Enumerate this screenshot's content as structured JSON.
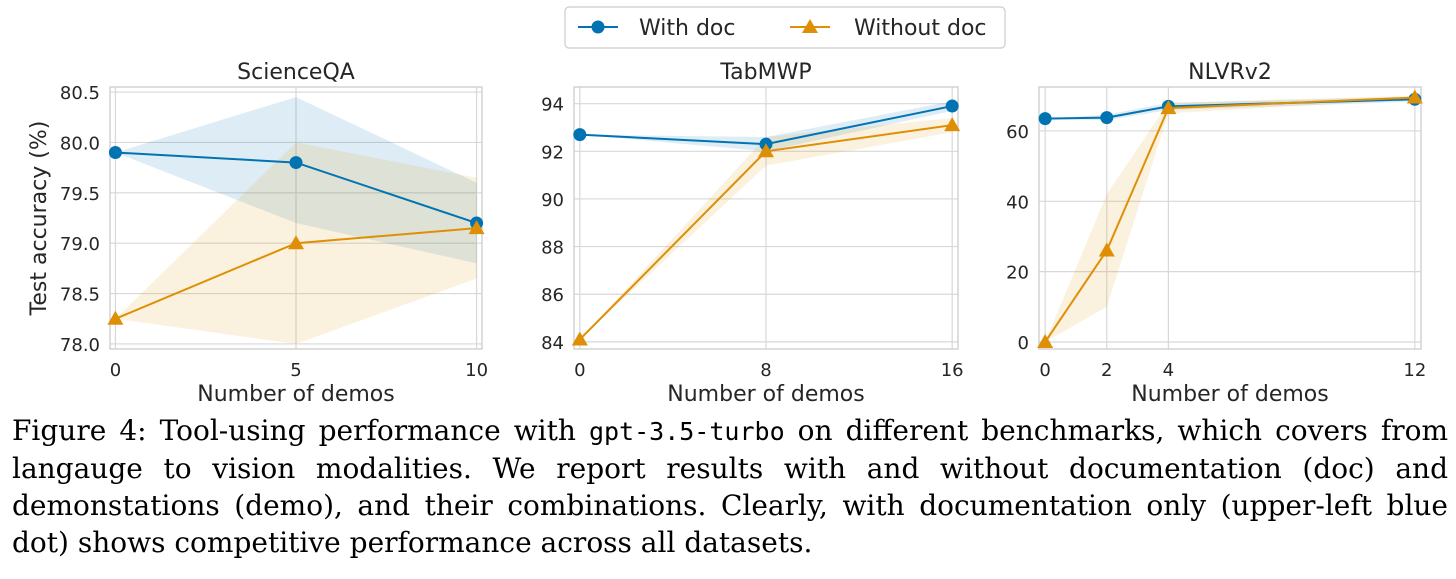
{
  "legend": {
    "placement": "top-center",
    "entries": [
      {
        "label": "With doc",
        "color": "#0173b2",
        "marker": "circle"
      },
      {
        "label": "Without doc",
        "color": "#de8f05",
        "marker": "triangle"
      }
    ]
  },
  "chart_data": [
    {
      "type": "line",
      "title": "ScienceQA",
      "xlabel": "Number of demos",
      "ylabel": "Test accuracy (%)",
      "x": [
        0,
        5,
        10
      ],
      "xticks": [
        0,
        5,
        10
      ],
      "xlim": [
        -0.15,
        10.15
      ],
      "ylim": [
        77.95,
        80.55
      ],
      "yticks": [
        78.0,
        78.5,
        79.0,
        79.5,
        80.0,
        80.5
      ],
      "ytick_labels": [
        "78.0",
        "78.5",
        "79.0",
        "79.5",
        "80.0",
        "80.5"
      ],
      "grid": true,
      "series": [
        {
          "name": "With doc",
          "values": [
            79.9,
            79.8,
            79.2
          ],
          "band_low": [
            79.9,
            79.2,
            78.8
          ],
          "band_high": [
            79.9,
            80.45,
            79.6
          ]
        },
        {
          "name": "Without doc",
          "values": [
            78.25,
            79.0,
            79.15
          ],
          "band_low": [
            78.25,
            78.0,
            78.65
          ],
          "band_high": [
            78.25,
            80.0,
            79.65
          ]
        }
      ]
    },
    {
      "type": "line",
      "title": "TabMWP",
      "xlabel": "Number of demos",
      "ylabel": "",
      "x": [
        0,
        8,
        16
      ],
      "xticks": [
        0,
        8,
        16
      ],
      "xlim": [
        -0.25,
        16.25
      ],
      "ylim": [
        83.7,
        94.7
      ],
      "yticks": [
        84,
        86,
        88,
        90,
        92,
        94
      ],
      "ytick_labels": [
        "84",
        "86",
        "88",
        "90",
        "92",
        "94"
      ],
      "grid": true,
      "series": [
        {
          "name": "With doc",
          "values": [
            92.7,
            92.3,
            93.9
          ],
          "band_low": [
            92.7,
            92.0,
            93.7
          ],
          "band_high": [
            92.7,
            92.6,
            94.1
          ]
        },
        {
          "name": "Without doc",
          "values": [
            84.1,
            92.0,
            93.1
          ],
          "band_low": [
            84.1,
            91.4,
            92.8
          ],
          "band_high": [
            84.1,
            92.6,
            93.4
          ]
        }
      ]
    },
    {
      "type": "line",
      "title": "NLVRv2",
      "xlabel": "Number of demos",
      "ylabel": "",
      "x": [
        0,
        2,
        4,
        12
      ],
      "xticks": [
        0,
        2,
        4,
        12
      ],
      "xlim": [
        -0.2,
        12.2
      ],
      "ylim": [
        -2,
        72.5
      ],
      "yticks": [
        0,
        20,
        40,
        60
      ],
      "ytick_labels": [
        "0",
        "20",
        "40",
        "60"
      ],
      "grid": true,
      "series": [
        {
          "name": "With doc",
          "values": [
            63.5,
            63.8,
            67.0,
            69.0
          ],
          "band_low": [
            63.5,
            63.0,
            66.0,
            68.3
          ],
          "band_high": [
            63.5,
            64.6,
            68.0,
            69.7
          ]
        },
        {
          "name": "Without doc",
          "values": [
            0,
            26,
            66.5,
            69.5
          ],
          "band_low": [
            0,
            10,
            65.0,
            69.0
          ],
          "band_high": [
            0,
            42,
            68.0,
            70.0
          ]
        }
      ]
    }
  ],
  "caption": {
    "prefix": "Figure 4: Tool-using performance with ",
    "code": "gpt-3.5-turbo",
    "suffix": " on different benchmarks, which covers from langauge to vision modalities. We report results with and without documentation (doc) and demonstations (demo), and their combinations. Clearly, with documentation only (upper-left blue dot) shows competitive performance across all datasets."
  }
}
